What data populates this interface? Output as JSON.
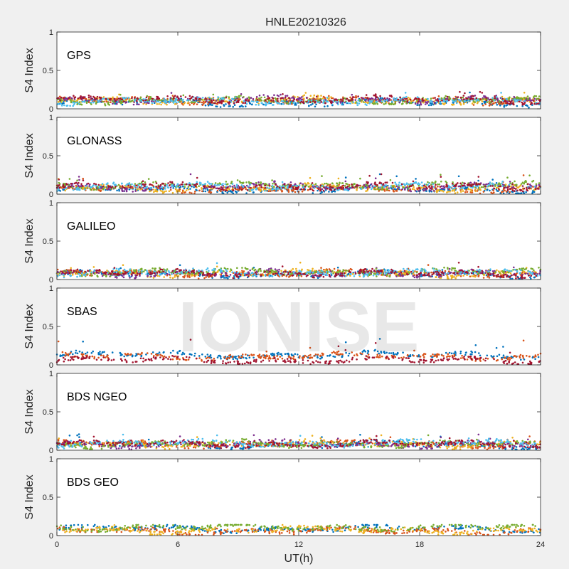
{
  "figure": {
    "title": "HNLE20210326",
    "watermark": "IONISE"
  },
  "colors": {
    "background": "#f0f0f0",
    "axes_bg": "#ffffff",
    "axes_edge": "#262626",
    "palette": [
      "#0072BD",
      "#D95319",
      "#EDB120",
      "#7E2F8E",
      "#77AC30",
      "#4DBEEE",
      "#A2142F"
    ]
  },
  "chart_data": [
    {
      "type": "scatter",
      "panel_label": "GPS",
      "ylabel": "S4 Index",
      "xlabel": "",
      "xlim": [
        0,
        24
      ],
      "ylim": [
        0,
        1
      ],
      "xticks": [
        0,
        6,
        12,
        18,
        24
      ],
      "yticks": [
        0,
        0.5,
        1
      ],
      "ytick_labels": [
        "0",
        "0.5",
        "1"
      ],
      "xtick_labels": [],
      "series_baseline": [
        0.08,
        0.11,
        0.11,
        0.12,
        0.11,
        0.1,
        0.12
      ],
      "max_value": 0.22
    },
    {
      "type": "scatter",
      "panel_label": "GLONASS",
      "ylabel": "S4 Index",
      "xlabel": "",
      "xlim": [
        0,
        24
      ],
      "ylim": [
        0,
        1
      ],
      "xticks": [
        0,
        6,
        12,
        18,
        24
      ],
      "yticks": [
        0,
        0.5,
        1
      ],
      "ytick_labels": [
        "0",
        "0.5",
        "1"
      ],
      "xtick_labels": [],
      "series_baseline": [
        0.06,
        0.07,
        0.08,
        0.1,
        0.12,
        0.1,
        0.1
      ],
      "max_value": 0.26
    },
    {
      "type": "scatter",
      "panel_label": "GALILEO",
      "ylabel": "S4 Index",
      "xlabel": "",
      "xlim": [
        0,
        24
      ],
      "ylim": [
        0,
        1
      ],
      "xticks": [
        0,
        6,
        12,
        18,
        24
      ],
      "yticks": [
        0,
        0.5,
        1
      ],
      "ytick_labels": [
        "0",
        "0.5",
        "1"
      ],
      "xtick_labels": [],
      "series_baseline": [
        0.07,
        0.08,
        0.08,
        0.08,
        0.1,
        0.09,
        0.08
      ],
      "max_value": 0.22
    },
    {
      "type": "scatter",
      "panel_label": "SBAS",
      "ylabel": "S4 Index",
      "xlabel": "",
      "xlim": [
        0,
        24
      ],
      "ylim": [
        0,
        1
      ],
      "xticks": [
        0,
        6,
        12,
        18,
        24
      ],
      "yticks": [
        0,
        0.5,
        1
      ],
      "ytick_labels": [
        "0",
        "0.5",
        "1"
      ],
      "xtick_labels": [],
      "series_baseline": [
        0.13,
        0.11,
        null,
        null,
        null,
        null,
        0.06
      ],
      "max_value": 0.34
    },
    {
      "type": "scatter",
      "panel_label": "BDS NGEO",
      "ylabel": "S4 Index",
      "xlabel": "",
      "xlim": [
        0,
        24
      ],
      "ylim": [
        0,
        1
      ],
      "xticks": [
        0,
        6,
        12,
        18,
        24
      ],
      "yticks": [
        0,
        0.5,
        1
      ],
      "ytick_labels": [
        "0",
        "0.5",
        "1"
      ],
      "xtick_labels": [],
      "series_baseline": [
        0.07,
        0.08,
        0.08,
        0.08,
        0.08,
        0.09,
        0.08
      ],
      "max_value": 0.22
    },
    {
      "type": "scatter",
      "panel_label": "BDS GEO",
      "ylabel": "S4 Index",
      "xlabel": "UT(h)",
      "xlim": [
        0,
        24
      ],
      "ylim": [
        0,
        1
      ],
      "xticks": [
        0,
        6,
        12,
        18,
        24
      ],
      "yticks": [
        0,
        0.5,
        1
      ],
      "ytick_labels": [
        "0",
        "0.5",
        "1"
      ],
      "xtick_labels": [
        "0",
        "6",
        "12",
        "18",
        "24"
      ],
      "series_baseline": [
        0.09,
        0.06,
        0.07,
        null,
        0.11,
        null,
        null
      ],
      "max_value": 0.14
    }
  ]
}
